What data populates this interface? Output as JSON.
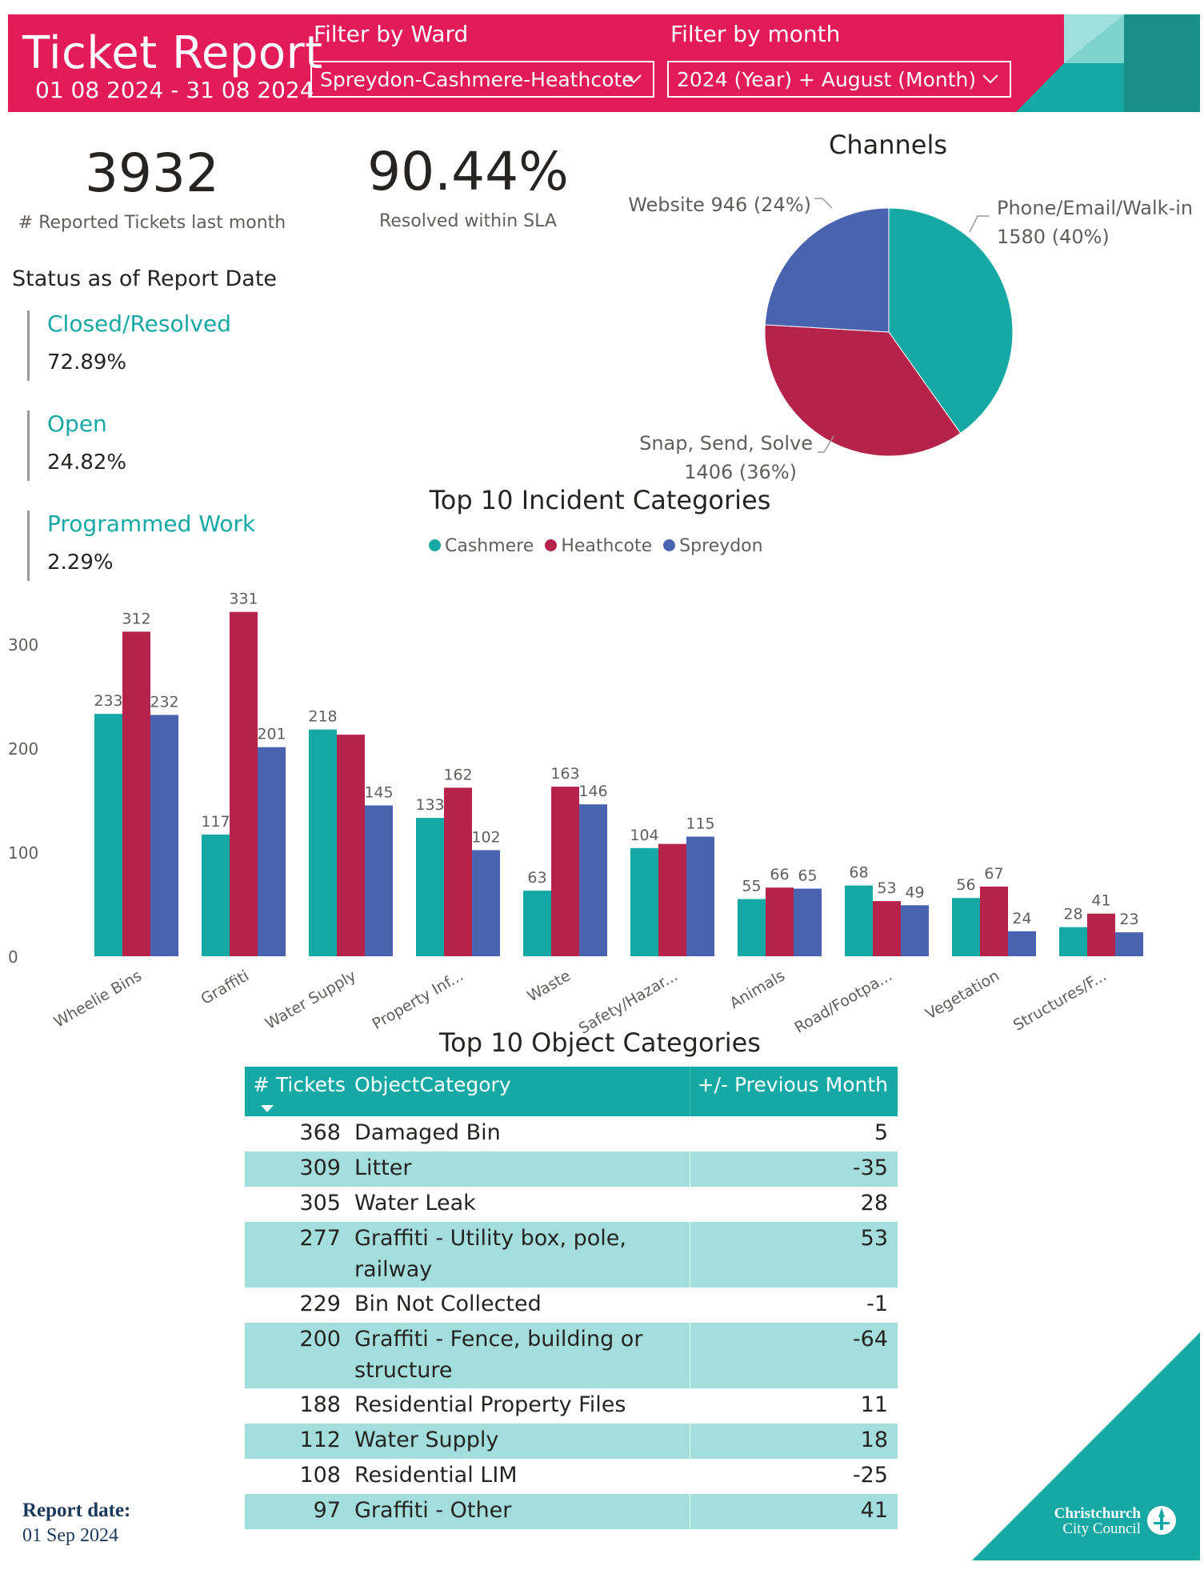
{
  "header": {
    "title": "Ticket Report",
    "date_range": "01 08 2024 - 31 08 2024",
    "ward_filter_label": "Filter by Ward",
    "ward_filter_value": "Spreydon-Cashmere-Heathcote",
    "month_filter_label": "Filter by month",
    "month_filter_value": "2024 (Year) + August (Month)",
    "colors": {
      "header_bg": "#e31b58",
      "teal": "#16a8a4",
      "dark_teal": "#1a8f88"
    }
  },
  "kpis": {
    "reported_value": "3932",
    "reported_label": "# Reported Tickets last month",
    "sla_value": "90.44%",
    "sla_label": "Resolved within SLA"
  },
  "status": {
    "heading": "Status as of Report Date",
    "items": [
      {
        "label": "Closed/Resolved",
        "value": "72.89%"
      },
      {
        "label": "Open",
        "value": "24.82%"
      },
      {
        "label": "Programmed Work",
        "value": "2.29%"
      }
    ]
  },
  "chart_data": [
    {
      "type": "pie",
      "title": "Channels",
      "slices": [
        {
          "label": "Phone/Email/Walk-in",
          "value": 1580,
          "pct": "40%",
          "color": "#16a8a4"
        },
        {
          "label": "Snap, Send, Solve",
          "value": 1406,
          "pct": "36%",
          "color": "#b5234a"
        },
        {
          "label": "Website",
          "value": 946,
          "pct": "24%",
          "color": "#4a63b0"
        }
      ],
      "slice_labels": [
        "Phone/Email/Walk-in",
        "1580 (40%)",
        "Snap, Send, Solve",
        "1406 (36%)",
        "Website 946 (24%)"
      ]
    },
    {
      "type": "bar",
      "title": "Top 10 Incident Categories",
      "categories": [
        "Wheelie Bins",
        "Graffiti",
        "Water Supply",
        "Property Inf...",
        "Waste",
        "Safety/Hazar...",
        "Animals",
        "Road/Footpa...",
        "Vegetation",
        "Structures/F..."
      ],
      "series": [
        {
          "name": "Cashmere",
          "color": "#16a8a4",
          "values": [
            233,
            117,
            218,
            133,
            63,
            104,
            55,
            68,
            56,
            28
          ]
        },
        {
          "name": "Heathcote",
          "color": "#b5234a",
          "values": [
            312,
            331,
            213,
            162,
            163,
            108,
            66,
            53,
            67,
            41
          ]
        },
        {
          "name": "Spreydon",
          "color": "#4a63b0",
          "values": [
            232,
            201,
            145,
            102,
            146,
            115,
            65,
            49,
            24,
            23
          ]
        }
      ],
      "value_labels": [
        [
          "233",
          "117",
          "218",
          "133",
          "63",
          "104",
          "55",
          "68",
          "56",
          "28"
        ],
        [
          "312",
          "331",
          "",
          "162",
          "163",
          "",
          "66",
          "53",
          "67",
          "41"
        ],
        [
          "232",
          "201",
          "145",
          "102",
          "146",
          "115",
          "65",
          "49",
          "24",
          "23"
        ]
      ],
      "yticks": [
        "0",
        "100",
        "200",
        "300"
      ],
      "ylim": [
        0,
        340
      ],
      "grid": false,
      "legend": "top-center"
    }
  ],
  "object_table": {
    "title": "Top 10 Object Categories",
    "headers": [
      "# Tickets",
      "ObjectCategory",
      "+/- Previous Month"
    ],
    "rows": [
      {
        "tickets": "368",
        "category": "Damaged Bin",
        "change": "5"
      },
      {
        "tickets": "309",
        "category": "Litter",
        "change": "-35"
      },
      {
        "tickets": "305",
        "category": "Water Leak",
        "change": "28"
      },
      {
        "tickets": "277",
        "category": "Graffiti - Utility box, pole,",
        "category2": "railway",
        "change": "53"
      },
      {
        "tickets": "229",
        "category": "Bin Not Collected",
        "change": "-1"
      },
      {
        "tickets": "200",
        "category": "Graffiti - Fence, building or",
        "category2": "structure",
        "change": "-64"
      },
      {
        "tickets": "188",
        "category": "Residential Property Files",
        "change": "11"
      },
      {
        "tickets": "112",
        "category": "Water Supply",
        "change": "18"
      },
      {
        "tickets": "108",
        "category": "Residential LIM",
        "change": "-25"
      },
      {
        "tickets": "97",
        "category": "Graffiti - Other",
        "change": "41"
      }
    ]
  },
  "footer": {
    "report_date_label": "Report date:",
    "report_date_value": "01 Sep 2024",
    "council_name_1": "Christchurch",
    "council_name_2": "City Council"
  }
}
